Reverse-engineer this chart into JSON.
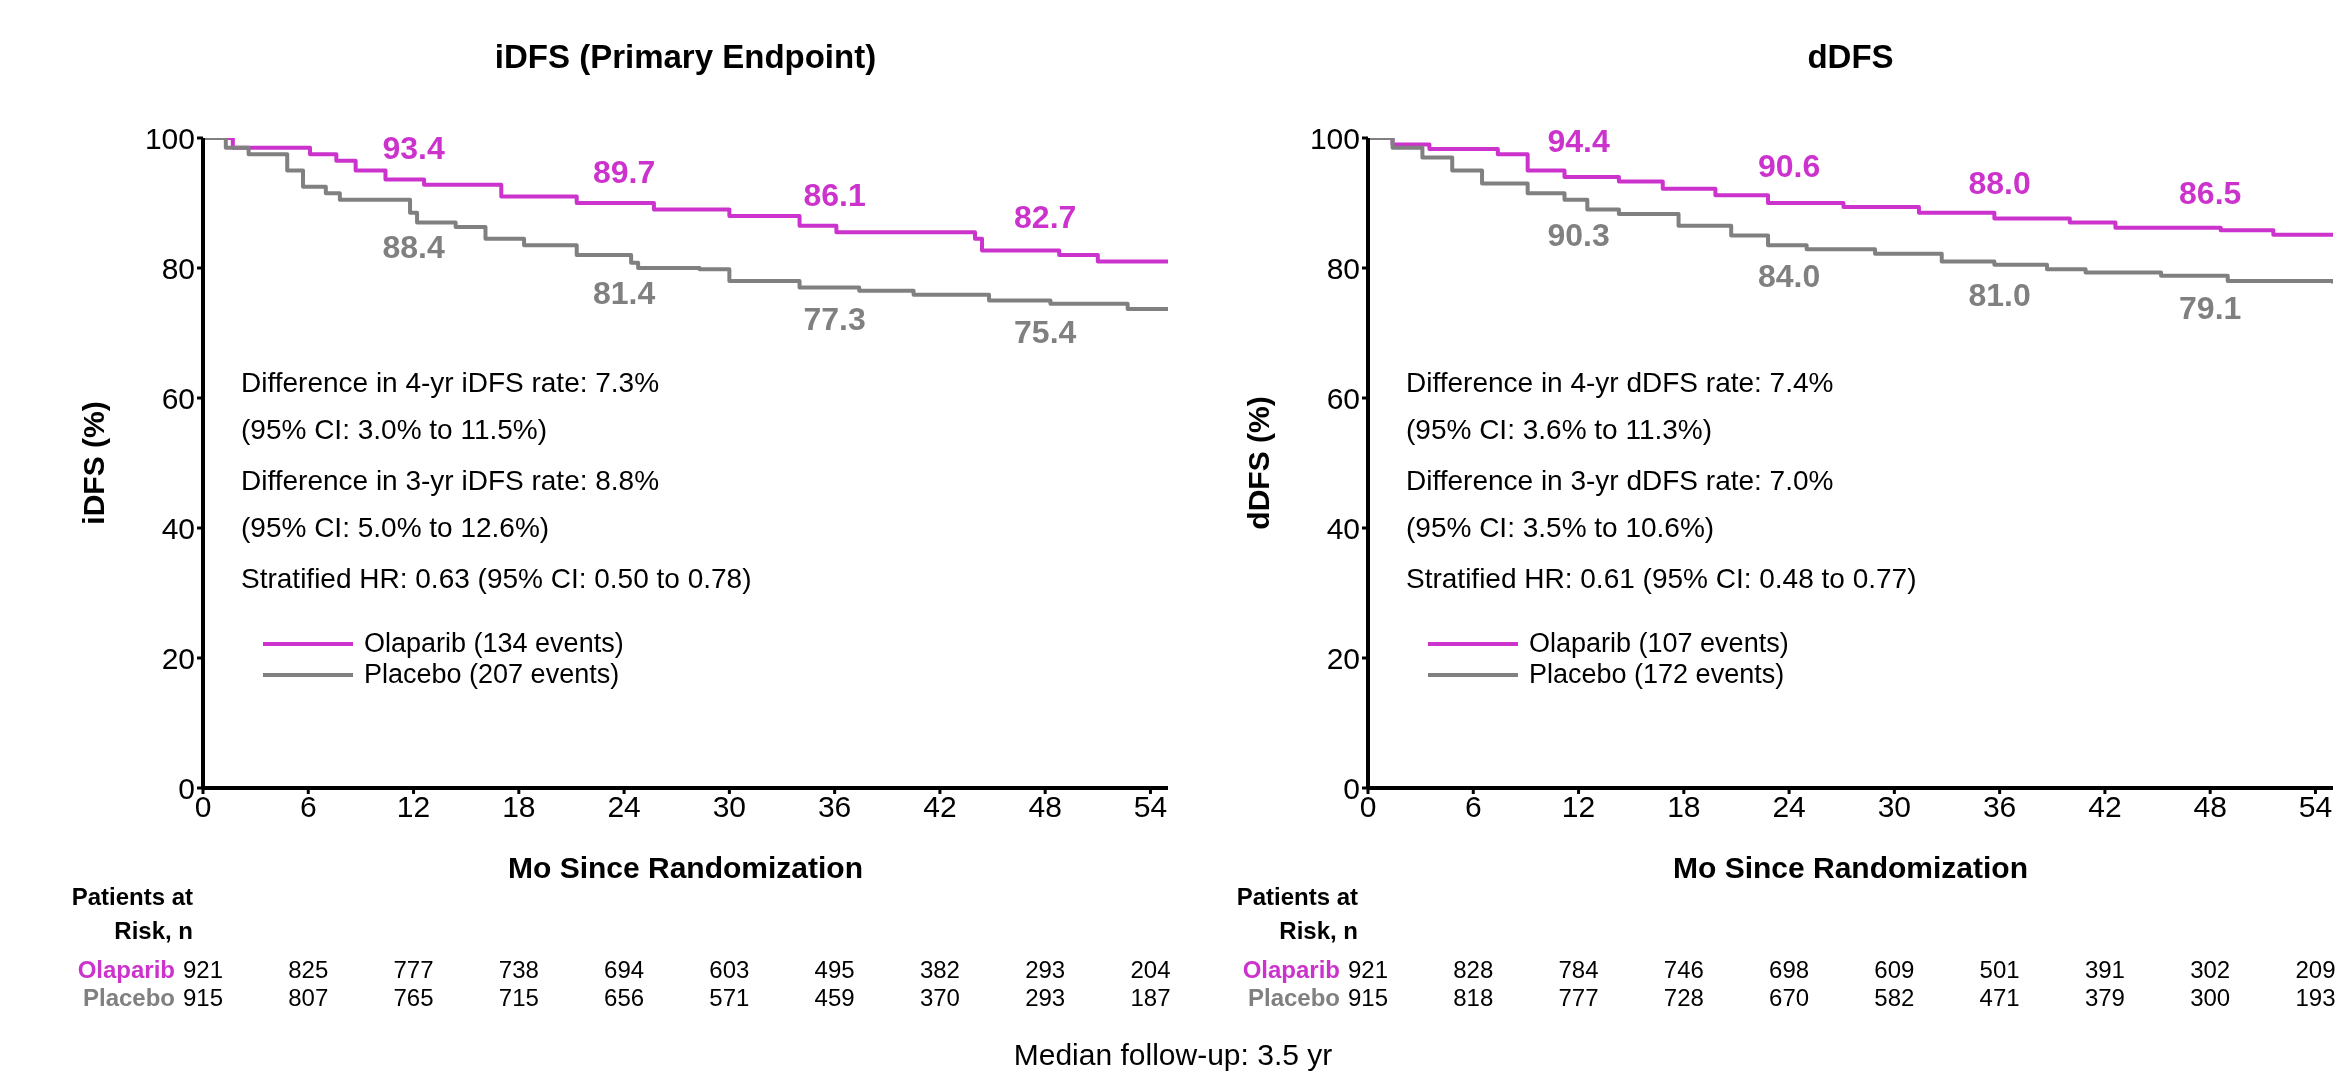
{
  "chart_data": [
    {
      "type": "step",
      "title": "iDFS (Primary Endpoint)",
      "xlabel": "Mo Since Randomization",
      "ylabel": "iDFS (%)",
      "xlim": [
        0,
        55
      ],
      "xticks": [
        0,
        6,
        12,
        18,
        24,
        30,
        36,
        42,
        48,
        54
      ],
      "ylim": [
        0,
        100
      ],
      "yticks": [
        0,
        20,
        40,
        60,
        80,
        100
      ],
      "legend": "bottom left",
      "marker": "none",
      "line_style": "solid",
      "series": [
        {
          "name": "Olaparib (134 events)",
          "color": "#cc33cc",
          "x": [
            0,
            1.7,
            6.1,
            7.6,
            8.7,
            10.4,
            12.6,
            17,
            21.3,
            25.7,
            30,
            34,
            36.1,
            44,
            44.4,
            48.8,
            51,
            55
          ],
          "values": [
            100,
            98.5,
            97.5,
            96.5,
            95,
            93.6,
            92.8,
            91,
            90,
            89,
            88,
            86.5,
            85.5,
            84.5,
            82.7,
            82,
            81,
            81
          ]
        },
        {
          "name": "Placebo (207 events)",
          "color": "#808080",
          "x": [
            0,
            1.3,
            2.6,
            4.8,
            5.7,
            7,
            7.8,
            11.8,
            12.2,
            14.4,
            16.1,
            18.3,
            21.3,
            24.4,
            24.8,
            28.3,
            30,
            34,
            37.4,
            40.5,
            44.8,
            48.3,
            52.7,
            55
          ],
          "values": [
            100,
            98.5,
            97.5,
            95,
            92.5,
            91.5,
            90.5,
            88.5,
            87,
            86.3,
            84.5,
            83.5,
            82,
            80.8,
            80,
            79.8,
            78,
            77,
            76.5,
            75.9,
            75,
            74.5,
            73.7,
            73.7
          ]
        }
      ],
      "annotations": [
        {
          "text": "93.4",
          "x": 12,
          "y": 93.4
        },
        {
          "text": "89.7",
          "x": 24,
          "y": 89.7
        },
        {
          "text": "86.1",
          "x": 36,
          "y": 86.1
        },
        {
          "text": "82.7",
          "x": 48,
          "y": 82.7
        },
        {
          "text": "88.4",
          "x": 12,
          "y": 88.4
        },
        {
          "text": "81.4",
          "x": 24,
          "y": 81.4
        },
        {
          "text": "77.3",
          "x": 36,
          "y": 77.3
        },
        {
          "text": "75.4",
          "x": 48,
          "y": 75.4
        },
        "Difference in 4-yr iDFS rate: 7.3%",
        "(95% CI: 3.0% to 11.5%)",
        "Difference in 3-yr iDFS rate: 8.8%",
        "(95% CI: 5.0% to 12.6%)",
        "Stratified HR: 0.63 (95% CI: 0.50 to 0.78)",
        "Patients at Risk, n",
        "Olaparib",
        "921",
        "825",
        "777",
        "738",
        "694",
        "603",
        "495",
        "382",
        "293",
        "204",
        "Placebo",
        "915",
        "807",
        "765",
        "715",
        "656",
        "571",
        "459",
        "370",
        "293",
        "187"
      ]
    },
    {
      "type": "step",
      "title": "dDFS",
      "xlabel": "Mo Since Randomization",
      "ylabel": "dDFS (%)",
      "xlim": [
        0,
        55
      ],
      "xticks": [
        0,
        6,
        12,
        18,
        24,
        30,
        36,
        42,
        48,
        54
      ],
      "ylim": [
        0,
        100
      ],
      "yticks": [
        0,
        20,
        40,
        60,
        80,
        100
      ],
      "legend": "bottom left",
      "marker": "none",
      "line_style": "solid",
      "series": [
        {
          "name": "Olaparib (107 events)",
          "color": "#cc33cc",
          "x": [
            0,
            1.4,
            3.5,
            7.4,
            9.1,
            11.2,
            14.3,
            16.8,
            19.8,
            22.8,
            27.1,
            31.4,
            35.7,
            40,
            42.6,
            48.6,
            51.6,
            55
          ],
          "values": [
            100,
            99,
            98.3,
            97.5,
            95,
            94,
            93.3,
            92.2,
            91.2,
            90,
            89.4,
            88.5,
            87.6,
            87,
            86.2,
            85.8,
            85.1,
            85.1
          ]
        },
        {
          "name": "Placebo (172 events)",
          "color": "#808080",
          "x": [
            0,
            1.4,
            3.1,
            4.8,
            6.5,
            9.1,
            11.2,
            12.5,
            14.3,
            17.7,
            20.7,
            22.8,
            25,
            28.9,
            32.7,
            35.7,
            38.7,
            40.9,
            45.2,
            49,
            55
          ],
          "values": [
            100,
            98.5,
            97,
            95,
            93,
            91.5,
            90.5,
            89,
            88.3,
            86.5,
            85,
            83.5,
            82.9,
            82.2,
            81,
            80.5,
            79.8,
            79.3,
            78.8,
            78,
            77.6
          ]
        }
      ],
      "annotations": [
        {
          "text": "94.4",
          "x": 12,
          "y": 94.4
        },
        {
          "text": "90.6",
          "x": 24,
          "y": 90.6
        },
        {
          "text": "88.0",
          "x": 36,
          "y": 88.0
        },
        {
          "text": "86.5",
          "x": 48,
          "y": 86.5
        },
        {
          "text": "90.3",
          "x": 12,
          "y": 90.3
        },
        {
          "text": "84.0",
          "x": 24,
          "y": 84.0
        },
        {
          "text": "81.0",
          "x": 36,
          "y": 81.0
        },
        {
          "text": "79.1",
          "x": 48,
          "y": 79.1
        },
        "Difference in 4-yr dDFS rate: 7.4%",
        "(95% CI: 3.6% to 11.3%)",
        "Difference in 3-yr dDFS rate: 7.0%",
        "(95% CI: 3.5% to 10.6%)",
        "Stratified HR: 0.61 (95% CI: 0.48 to 0.77)",
        "Patients at Risk, n",
        "Olaparib",
        "921",
        "828",
        "784",
        "746",
        "698",
        "609",
        "501",
        "391",
        "302",
        "209",
        "Placebo",
        "915",
        "818",
        "777",
        "728",
        "670",
        "582",
        "471",
        "379",
        "300",
        "193",
        "Median follow-up: 3.5 yr"
      ]
    }
  ]
}
